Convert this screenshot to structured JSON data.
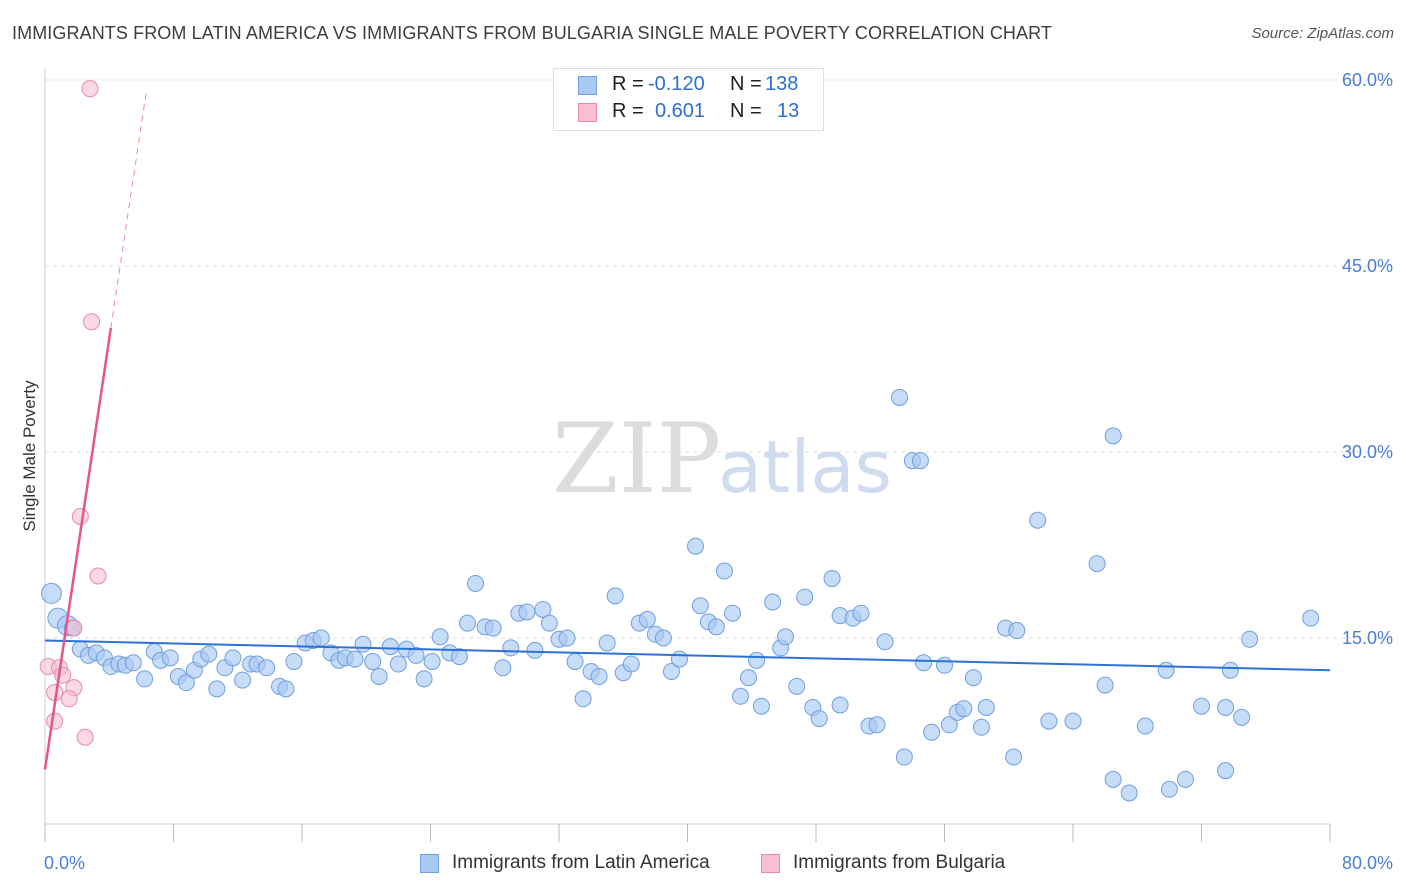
{
  "header": {
    "title": "IMMIGRANTS FROM LATIN AMERICA VS IMMIGRANTS FROM BULGARIA SINGLE MALE POVERTY CORRELATION CHART",
    "source": "Source: ZipAtlas.com"
  },
  "watermark": {
    "part1": "ZIP",
    "part2": "atlas"
  },
  "legend_top": {
    "rows": [
      {
        "r_label": "R =",
        "r_value": "-0.120",
        "n_label": "N =",
        "n_value": "138"
      },
      {
        "r_label": "R =",
        "r_value": "0.601",
        "n_label": "N =",
        "n_value": "13"
      }
    ]
  },
  "legend_bottom": {
    "items": [
      {
        "label": "Immigrants from Latin America"
      },
      {
        "label": "Immigrants from Bulgaria"
      }
    ]
  },
  "colors": {
    "blue_fill": "#a9c9f2",
    "blue_stroke": "#6f9fe0",
    "blue_line": "#2d72d2",
    "pink_fill": "#f7bfd0",
    "pink_stroke": "#e98aa7",
    "pink_line": "#e4558a",
    "tick_text": "#4a7fd4",
    "grid": "#dddddd"
  },
  "chart_data": {
    "type": "scatter",
    "title": "IMMIGRANTS FROM LATIN AMERICA VS IMMIGRANTS FROM BULGARIA SINGLE MALE POVERTY CORRELATION CHART",
    "xlabel": "",
    "ylabel": "Single Male Poverty",
    "xlim": [
      0,
      80
    ],
    "ylim": [
      0,
      60
    ],
    "x_tick_labels": [
      "0.0%",
      "80.0%"
    ],
    "y_ticks": [
      15,
      30,
      45,
      60
    ],
    "y_tick_labels": [
      "15.0%",
      "30.0%",
      "45.0%",
      "60.0%"
    ],
    "grid": true,
    "legend_position": "top-center",
    "series": [
      {
        "name": "Immigrants from Latin America",
        "color": "#a9c9f2",
        "r": -0.12,
        "n": 138,
        "trend": {
          "x": [
            0,
            80
          ],
          "y": [
            14.8,
            12.4
          ]
        },
        "points": [
          [
            0.4,
            18.6
          ],
          [
            0.8,
            16.6
          ],
          [
            1.4,
            16.0
          ],
          [
            1.7,
            15.8
          ],
          [
            2.2,
            14.1
          ],
          [
            2.7,
            13.6
          ],
          [
            3.2,
            13.8
          ],
          [
            3.7,
            13.4
          ],
          [
            4.1,
            12.7
          ],
          [
            4.6,
            12.9
          ],
          [
            5.0,
            12.8
          ],
          [
            5.5,
            13.0
          ],
          [
            6.2,
            11.7
          ],
          [
            6.8,
            13.9
          ],
          [
            7.2,
            13.2
          ],
          [
            7.8,
            13.4
          ],
          [
            8.3,
            11.9
          ],
          [
            8.8,
            11.4
          ],
          [
            9.3,
            12.4
          ],
          [
            9.7,
            13.3
          ],
          [
            10.2,
            13.7
          ],
          [
            10.7,
            10.9
          ],
          [
            11.2,
            12.6
          ],
          [
            11.7,
            13.4
          ],
          [
            12.3,
            11.6
          ],
          [
            12.8,
            12.9
          ],
          [
            13.2,
            12.9
          ],
          [
            13.8,
            12.6
          ],
          [
            14.6,
            11.1
          ],
          [
            15.0,
            10.9
          ],
          [
            15.5,
            13.1
          ],
          [
            16.2,
            14.6
          ],
          [
            16.7,
            14.8
          ],
          [
            17.2,
            15.0
          ],
          [
            17.8,
            13.8
          ],
          [
            18.3,
            13.2
          ],
          [
            18.7,
            13.4
          ],
          [
            19.3,
            13.3
          ],
          [
            19.8,
            14.5
          ],
          [
            20.4,
            13.1
          ],
          [
            20.8,
            11.9
          ],
          [
            21.5,
            14.3
          ],
          [
            22.0,
            12.9
          ],
          [
            22.5,
            14.1
          ],
          [
            23.1,
            13.6
          ],
          [
            23.6,
            11.7
          ],
          [
            24.1,
            13.1
          ],
          [
            24.6,
            15.1
          ],
          [
            25.2,
            13.8
          ],
          [
            25.8,
            13.5
          ],
          [
            26.3,
            16.2
          ],
          [
            26.8,
            19.4
          ],
          [
            27.4,
            15.9
          ],
          [
            27.9,
            15.8
          ],
          [
            28.5,
            12.6
          ],
          [
            29.0,
            14.2
          ],
          [
            29.5,
            17.0
          ],
          [
            30.0,
            17.1
          ],
          [
            30.5,
            14.0
          ],
          [
            31.0,
            17.3
          ],
          [
            31.4,
            16.2
          ],
          [
            32.0,
            14.9
          ],
          [
            32.5,
            15.0
          ],
          [
            33.0,
            13.1
          ],
          [
            33.5,
            10.1
          ],
          [
            34.0,
            12.3
          ],
          [
            34.5,
            11.9
          ],
          [
            35.0,
            14.6
          ],
          [
            35.5,
            18.4
          ],
          [
            36.0,
            12.2
          ],
          [
            36.5,
            12.9
          ],
          [
            37.0,
            16.2
          ],
          [
            37.5,
            16.5
          ],
          [
            38.0,
            15.3
          ],
          [
            38.5,
            15.0
          ],
          [
            39.0,
            12.3
          ],
          [
            39.5,
            13.3
          ],
          [
            40.5,
            22.4
          ],
          [
            40.8,
            17.6
          ],
          [
            41.3,
            16.3
          ],
          [
            41.8,
            15.9
          ],
          [
            42.3,
            20.4
          ],
          [
            42.8,
            17.0
          ],
          [
            43.3,
            10.3
          ],
          [
            43.8,
            11.8
          ],
          [
            44.3,
            13.2
          ],
          [
            44.6,
            9.5
          ],
          [
            45.3,
            17.9
          ],
          [
            45.8,
            14.2
          ],
          [
            46.1,
            15.1
          ],
          [
            46.8,
            11.1
          ],
          [
            47.3,
            18.3
          ],
          [
            47.8,
            9.4
          ],
          [
            48.2,
            8.5
          ],
          [
            49.0,
            19.8
          ],
          [
            49.5,
            9.6
          ],
          [
            49.5,
            16.8
          ],
          [
            50.3,
            16.6
          ],
          [
            50.8,
            17.0
          ],
          [
            51.3,
            7.9
          ],
          [
            51.8,
            8.0
          ],
          [
            52.3,
            14.7
          ],
          [
            53.2,
            34.4
          ],
          [
            53.5,
            5.4
          ],
          [
            54.0,
            29.3
          ],
          [
            54.5,
            29.3
          ],
          [
            54.7,
            13.0
          ],
          [
            55.2,
            7.4
          ],
          [
            56.0,
            12.8
          ],
          [
            56.3,
            8.0
          ],
          [
            56.8,
            9.0
          ],
          [
            57.2,
            9.3
          ],
          [
            57.8,
            11.8
          ],
          [
            58.3,
            7.8
          ],
          [
            58.6,
            9.4
          ],
          [
            59.8,
            15.8
          ],
          [
            60.3,
            5.4
          ],
          [
            60.5,
            15.6
          ],
          [
            61.8,
            24.5
          ],
          [
            62.5,
            8.3
          ],
          [
            64.0,
            8.3
          ],
          [
            65.5,
            21.0
          ],
          [
            66.0,
            11.2
          ],
          [
            66.5,
            3.6
          ],
          [
            66.5,
            31.3
          ],
          [
            67.5,
            2.5
          ],
          [
            68.5,
            7.9
          ],
          [
            69.8,
            12.4
          ],
          [
            70.0,
            2.8
          ],
          [
            71.0,
            3.6
          ],
          [
            72.0,
            9.5
          ],
          [
            73.5,
            4.3
          ],
          [
            73.5,
            9.4
          ],
          [
            73.8,
            12.4
          ],
          [
            74.5,
            8.6
          ],
          [
            75.0,
            14.9
          ],
          [
            78.8,
            16.6
          ]
        ]
      },
      {
        "name": "Immigrants from Bulgaria",
        "color": "#f7bfd0",
        "r": 0.601,
        "n": 13,
        "trend": {
          "x": [
            0,
            4.1
          ],
          "y": [
            4.4,
            40.0
          ]
        },
        "trend_dashed": {
          "x": [
            4.1,
            6.3
          ],
          "y": [
            40.0,
            59.0
          ]
        },
        "points": [
          [
            2.8,
            59.3
          ],
          [
            2.9,
            40.5
          ],
          [
            2.2,
            24.8
          ],
          [
            3.3,
            20.0
          ],
          [
            1.8,
            15.8
          ],
          [
            0.2,
            12.7
          ],
          [
            0.9,
            12.6
          ],
          [
            1.1,
            12.0
          ],
          [
            0.6,
            10.6
          ],
          [
            1.8,
            11.0
          ],
          [
            1.5,
            10.1
          ],
          [
            0.6,
            8.3
          ],
          [
            2.5,
            7.0
          ]
        ]
      }
    ]
  }
}
